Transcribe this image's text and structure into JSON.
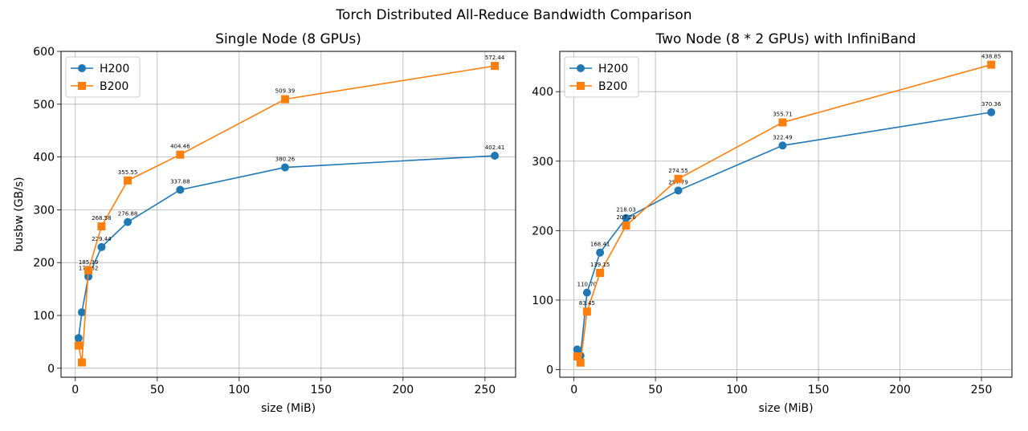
{
  "suptitle": "Torch Distributed All-Reduce Bandwidth Comparison",
  "colors": {
    "H200": "#1f77b4",
    "B200": "#ff7f0e",
    "grid": "#b0b0b0"
  },
  "chart_data": [
    {
      "type": "line",
      "title": "Single Node (8 GPUs)",
      "xlabel": "size (MiB)",
      "ylabel": "busbw (GB/s)",
      "xlim": [
        -8.7,
        268.7
      ],
      "ylim": [
        -17,
        600
      ],
      "xticks": [
        0,
        50,
        100,
        150,
        200,
        250
      ],
      "yticks": [
        0,
        100,
        200,
        300,
        400,
        500,
        600
      ],
      "grid": true,
      "legend": "top-left",
      "series": [
        {
          "name": "H200",
          "marker": "circle",
          "color": "#1f77b4",
          "x": [
            2,
            4,
            8,
            16,
            32,
            64,
            128,
            256
          ],
          "y": [
            57,
            106,
            173.62,
            229.44,
            276.88,
            337.88,
            380.26,
            402.41
          ],
          "labels": [
            null,
            null,
            "173.62",
            "229.44",
            "276.88",
            "337.88",
            "380.26",
            "402.41"
          ]
        },
        {
          "name": "B200",
          "marker": "square",
          "color": "#ff7f0e",
          "x": [
            2,
            4,
            8,
            16,
            32,
            64,
            128,
            256
          ],
          "y": [
            43,
            11,
            185.39,
            268.58,
            355.55,
            404.46,
            509.39,
            572.44
          ],
          "labels": [
            null,
            null,
            "185.39",
            "268.58",
            "355.55",
            "404.46",
            "509.39",
            "572.44"
          ]
        }
      ]
    },
    {
      "type": "line",
      "title": "Two Node (8 * 2 GPUs) with InfiniBand",
      "xlabel": "size (MiB)",
      "ylabel": "",
      "xlim": [
        -8.7,
        268.7
      ],
      "ylim": [
        -11,
        458
      ],
      "xticks": [
        0,
        50,
        100,
        150,
        200,
        250
      ],
      "yticks": [
        0,
        100,
        200,
        300,
        400
      ],
      "grid": true,
      "legend": "top-left",
      "series": [
        {
          "name": "H200",
          "marker": "circle",
          "color": "#1f77b4",
          "x": [
            2,
            4,
            8,
            16,
            32,
            64,
            128,
            256
          ],
          "y": [
            29,
            20,
            110.7,
            168.41,
            218.03,
            257.79,
            322.49,
            370.36
          ],
          "labels": [
            null,
            null,
            "110.70",
            "168.41",
            "218.03",
            "257.79",
            "322.49",
            "370.36"
          ]
        },
        {
          "name": "B200",
          "marker": "square",
          "color": "#ff7f0e",
          "x": [
            2,
            4,
            8,
            16,
            32,
            64,
            128,
            256
          ],
          "y": [
            19,
            10,
            83.45,
            139.15,
            207.26,
            274.55,
            355.71,
            438.85
          ],
          "labels": [
            null,
            null,
            "83.45",
            "139.15",
            "207.26",
            "274.55",
            "355.71",
            "438.85"
          ]
        }
      ]
    }
  ]
}
